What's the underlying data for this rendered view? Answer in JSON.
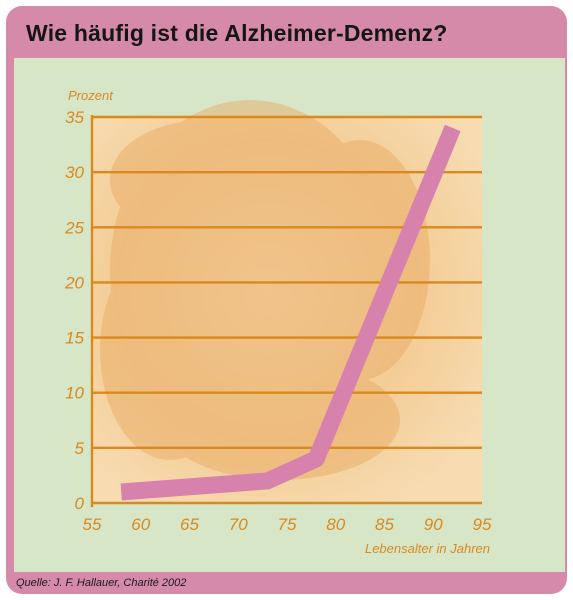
{
  "page": {
    "title": "Wie häufig ist die Alzheimer-Demenz?",
    "source": "Quelle: J. F. Hallauer, Charité 2002"
  },
  "colors": {
    "frame": "#d68aa9",
    "panel": "#d8e6c8",
    "plot_bg": "#f6d7a8",
    "grid": "#d9891e",
    "line": "#d682ad"
  },
  "chart_data": {
    "type": "line",
    "title": "Wie häufig ist die Alzheimer-Demenz?",
    "ylabel": "Prozent",
    "xlabel": "Lebensalter in Jahren",
    "xlim": [
      55,
      95
    ],
    "ylim": [
      0,
      35
    ],
    "xticks": [
      "55",
      "60",
      "65",
      "70",
      "75",
      "80",
      "85",
      "90",
      "95"
    ],
    "yticks": [
      "0",
      "5",
      "10",
      "15",
      "20",
      "25",
      "30",
      "35"
    ],
    "grid": "horizontal",
    "series": [
      {
        "x": [
          58,
          73,
          78,
          92
        ],
        "values": [
          1,
          2,
          4,
          34
        ]
      }
    ]
  }
}
